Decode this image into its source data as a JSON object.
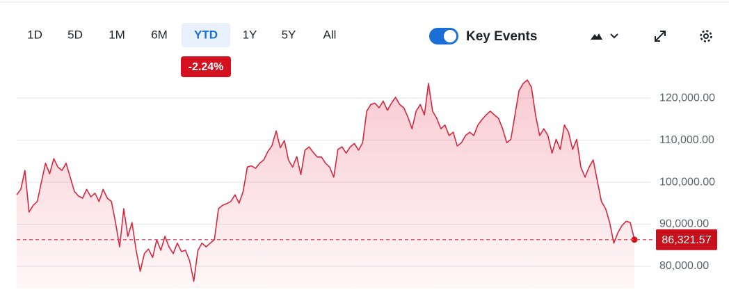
{
  "toolbar": {
    "ranges": [
      "1D",
      "5D",
      "1M",
      "6M",
      "YTD",
      "1Y",
      "5Y",
      "All"
    ],
    "selected": 4,
    "change": "-2.24%",
    "key_events": {
      "label": "Key Events",
      "on": true
    }
  },
  "chart_data": {
    "type": "area",
    "values": [
      97000,
      98300,
      102800,
      92900,
      94500,
      95400,
      100000,
      104500,
      102000,
      105600,
      103600,
      102800,
      104500,
      101200,
      97800,
      96700,
      96200,
      98300,
      96500,
      97400,
      95400,
      98300,
      96200,
      95400,
      90400,
      84600,
      93700,
      87100,
      90400,
      83800,
      78800,
      83000,
      84100,
      82100,
      86300,
      83800,
      87100,
      84600,
      83000,
      85500,
      83500,
      83800,
      81300,
      76400,
      83800,
      85500,
      84600,
      85500,
      86300,
      93700,
      94500,
      94900,
      95400,
      97000,
      95000,
      97800,
      103600,
      103900,
      103300,
      104500,
      105300,
      107300,
      108700,
      112200,
      108200,
      109900,
      105300,
      103600,
      106100,
      101800,
      107600,
      108400,
      107100,
      106000,
      106000,
      104500,
      103600,
      101200,
      107800,
      108400,
      106900,
      108400,
      109200,
      107600,
      109400,
      116900,
      118500,
      118800,
      117700,
      119300,
      117100,
      118800,
      120200,
      118500,
      117700,
      115500,
      112700,
      116900,
      118500,
      116000,
      123500,
      116900,
      115200,
      112700,
      113600,
      111100,
      111900,
      108600,
      109400,
      111100,
      111900,
      111100,
      113600,
      114900,
      116000,
      116900,
      116000,
      115200,
      112700,
      109400,
      110200,
      116000,
      121800,
      123500,
      124300,
      122600,
      116000,
      111100,
      112700,
      111100,
      106900,
      110200,
      107800,
      113600,
      111900,
      107800,
      110200,
      103600,
      101200,
      103600,
      105300,
      100300,
      95400,
      93700,
      90400,
      85500,
      88000,
      89700,
      90700,
      90400,
      86321.57
    ],
    "color": "#d7263d",
    "ylim": [
      74700,
      126800
    ],
    "yticks": [
      {
        "value": 80000,
        "label": "80,000.00"
      },
      {
        "value": 90000,
        "label": "90,000.00"
      },
      {
        "value": 100000,
        "label": "100,000.00"
      },
      {
        "value": 110000,
        "label": "110,000.00"
      },
      {
        "value": 120000,
        "label": "120,000.00"
      }
    ],
    "grid": true,
    "reference_line": {
      "value": 86321.57,
      "label": "86,321.57"
    }
  }
}
